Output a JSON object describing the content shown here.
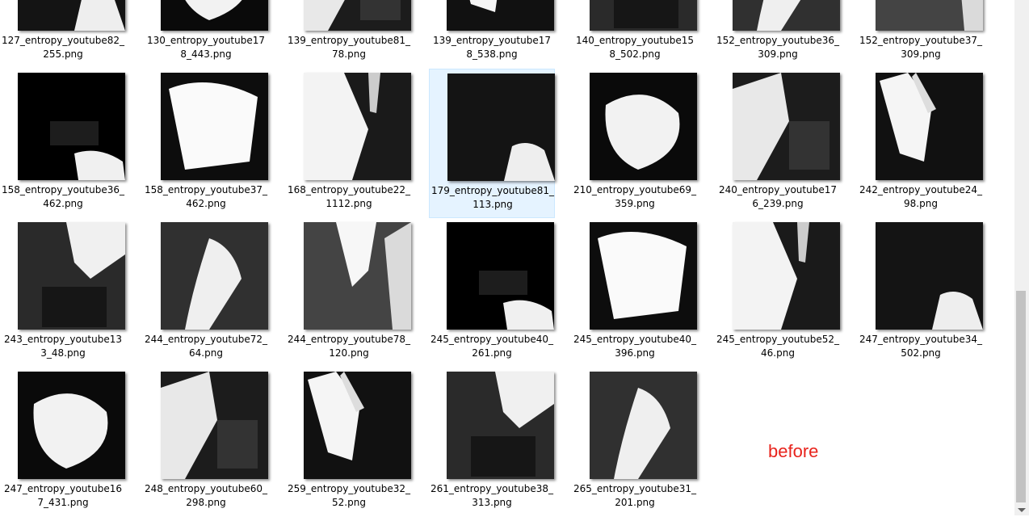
{
  "annotation": {
    "text": "before",
    "color": "#e8231c"
  },
  "files": [
    {
      "name": "127_entropy_youtube82_\n255.png",
      "selected": false
    },
    {
      "name": "130_entropy_youtube17\n8_443.png",
      "selected": false
    },
    {
      "name": "139_entropy_youtube81_\n78.png",
      "selected": false
    },
    {
      "name": "139_entropy_youtube17\n8_538.png",
      "selected": false
    },
    {
      "name": "140_entropy_youtube15\n8_502.png",
      "selected": false
    },
    {
      "name": "152_entropy_youtube36_\n309.png",
      "selected": false
    },
    {
      "name": "152_entropy_youtube37_\n309.png",
      "selected": false
    },
    {
      "name": "158_entropy_youtube36_\n462.png",
      "selected": false
    },
    {
      "name": "158_entropy_youtube37_\n462.png",
      "selected": false
    },
    {
      "name": "168_entropy_youtube22_\n1112.png",
      "selected": false
    },
    {
      "name": "179_entropy_youtube81_\n113.png",
      "selected": true
    },
    {
      "name": "210_entropy_youtube69_\n359.png",
      "selected": false
    },
    {
      "name": "240_entropy_youtube17\n6_239.png",
      "selected": false
    },
    {
      "name": "242_entropy_youtube24_\n98.png",
      "selected": false
    },
    {
      "name": "243_entropy_youtube13\n3_48.png",
      "selected": false
    },
    {
      "name": "244_entropy_youtube72_\n64.png",
      "selected": false
    },
    {
      "name": "244_entropy_youtube78_\n120.png",
      "selected": false
    },
    {
      "name": "245_entropy_youtube40_\n261.png",
      "selected": false
    },
    {
      "name": "245_entropy_youtube40_\n396.png",
      "selected": false
    },
    {
      "name": "245_entropy_youtube52_\n46.png",
      "selected": false
    },
    {
      "name": "247_entropy_youtube34_\n502.png",
      "selected": false
    },
    {
      "name": "247_entropy_youtube16\n7_431.png",
      "selected": false
    },
    {
      "name": "248_entropy_youtube60_\n298.png",
      "selected": false
    },
    {
      "name": "259_entropy_youtube32_\n52.png",
      "selected": false
    },
    {
      "name": "261_entropy_youtube38_\n313.png",
      "selected": false
    },
    {
      "name": "265_entropy_youtube31_\n201.png",
      "selected": false
    }
  ]
}
